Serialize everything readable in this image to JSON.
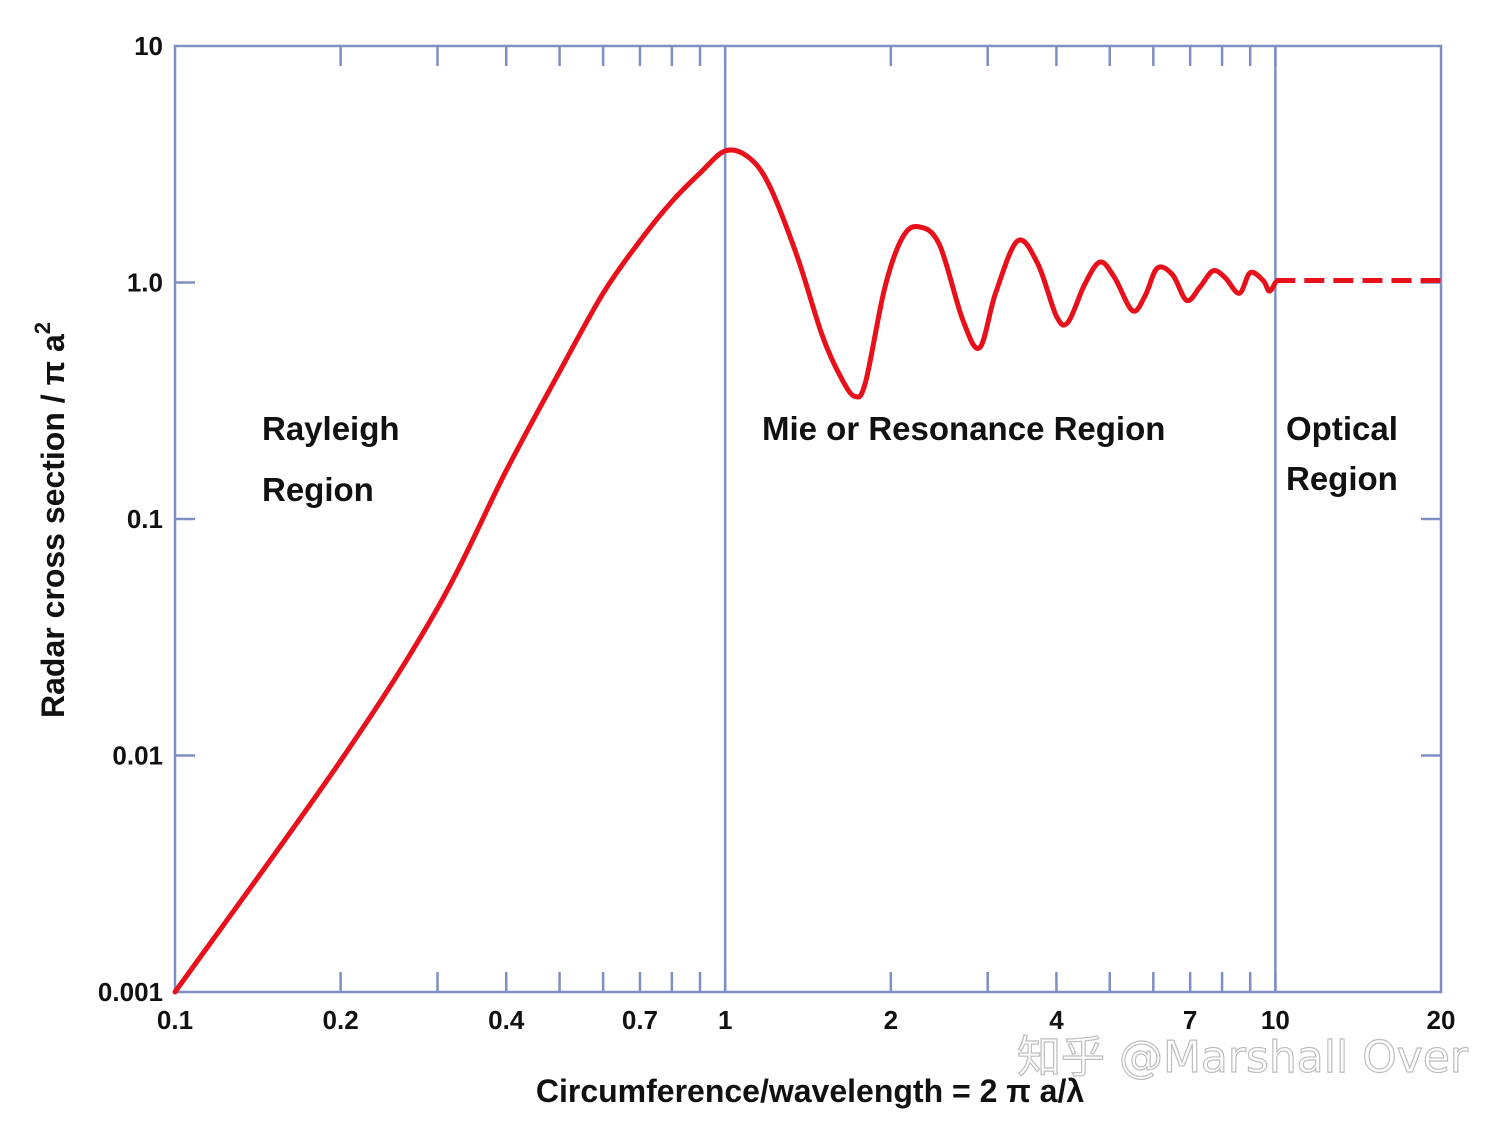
{
  "chart_data": {
    "type": "line",
    "title": "",
    "xlabel": "Circumference/wavelength = 2 π a/λ",
    "ylabel": "Radar cross section / π a",
    "ylabel_superscript": "2",
    "xscale": "log",
    "yscale": "log",
    "xlim": [
      0.1,
      20
    ],
    "ylim": [
      0.001,
      10
    ],
    "grid": false,
    "x_ticks": [
      {
        "value": 0.1,
        "label": "0.1"
      },
      {
        "value": 0.2,
        "label": "0.2"
      },
      {
        "value": 0.4,
        "label": "0.4"
      },
      {
        "value": 0.7,
        "label": "0.7"
      },
      {
        "value": 1,
        "label": "1"
      },
      {
        "value": 2,
        "label": "2"
      },
      {
        "value": 4,
        "label": "4"
      },
      {
        "value": 7,
        "label": "7"
      },
      {
        "value": 10,
        "label": "10"
      },
      {
        "value": 20,
        "label": "20"
      }
    ],
    "x_minor_ticks": [
      0.3,
      0.5,
      0.6,
      0.8,
      0.9,
      3,
      5,
      6,
      8,
      9
    ],
    "y_ticks": [
      {
        "value": 0.001,
        "label": "0.001"
      },
      {
        "value": 0.01,
        "label": "0.01"
      },
      {
        "value": 0.1,
        "label": "0.1"
      },
      {
        "value": 1,
        "label": "1.0"
      },
      {
        "value": 10,
        "label": "10"
      }
    ],
    "region_boundaries": [
      1,
      10
    ],
    "regions": [
      {
        "name": "rayleigh",
        "lines": [
          "Rayleigh",
          "Region"
        ]
      },
      {
        "name": "mie",
        "lines": [
          "Mie or Resonance Region"
        ]
      },
      {
        "name": "optical",
        "lines": [
          "Optical",
          "Region"
        ]
      }
    ],
    "series": [
      {
        "name": "rcs-solid",
        "style": "solid",
        "x": [
          0.1,
          0.2,
          0.3,
          0.4,
          0.5,
          0.6,
          0.7,
          0.8,
          0.9,
          1.0,
          1.1,
          1.2,
          1.35,
          1.5,
          1.62,
          1.72,
          1.8,
          1.95,
          2.1,
          2.25,
          2.45,
          2.7,
          2.9,
          3.1,
          3.4,
          3.7,
          4.0,
          4.2,
          4.5,
          4.8,
          5.1,
          5.5,
          5.8,
          6.1,
          6.5,
          6.9,
          7.3,
          7.7,
          8.1,
          8.6,
          9.0,
          9.5,
          9.75,
          10.0
        ],
        "y": [
          0.001,
          0.0095,
          0.042,
          0.16,
          0.42,
          0.9,
          1.5,
          2.2,
          2.9,
          3.6,
          3.4,
          2.6,
          1.3,
          0.6,
          0.4,
          0.33,
          0.38,
          0.95,
          1.55,
          1.72,
          1.45,
          0.7,
          0.53,
          0.9,
          1.5,
          1.2,
          0.72,
          0.68,
          0.98,
          1.22,
          1.05,
          0.76,
          0.88,
          1.15,
          1.08,
          0.84,
          0.96,
          1.12,
          1.05,
          0.9,
          1.1,
          1.02,
          0.92,
          1.0
        ]
      },
      {
        "name": "rcs-dashed",
        "style": "dashed",
        "x": [
          10.0,
          20.0
        ],
        "y": [
          1.02,
          1.02
        ]
      }
    ],
    "colors": {
      "curve": "#e8101a",
      "axis": "#7f8fc4",
      "text": "#111111"
    }
  },
  "watermark": {
    "text": "知乎 @Marshall Over"
  }
}
